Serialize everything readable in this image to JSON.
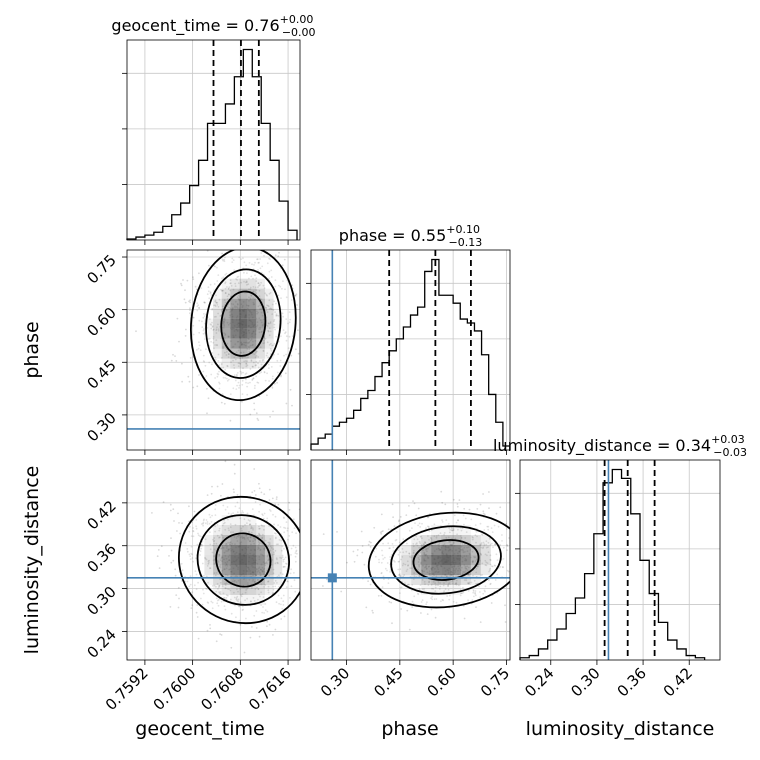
{
  "chart_data": {
    "type": "corner",
    "parameters": [
      "geocent_time",
      "phase",
      "luminosity_distance"
    ],
    "truths": {
      "geocent_time": null,
      "phase": 0.26,
      "luminosity_distance": 0.315
    },
    "grid": true,
    "marginals": [
      {
        "param": "geocent_time",
        "title": {
          "prefix": "geocent_time = ",
          "value": "0.76",
          "plus": "+0.00",
          "minus": "−0.00"
        },
        "xlim": [
          0.7589,
          0.7618
        ],
        "quantiles": [
          0.76035,
          0.76081,
          0.76111
        ],
        "bin_edges": [
          0.7589,
          0.75905,
          0.7592,
          0.75935,
          0.7595,
          0.75965,
          0.7598,
          0.75995,
          0.7601,
          0.76025,
          0.7604,
          0.76055,
          0.7607,
          0.76085,
          0.761,
          0.76115,
          0.7613,
          0.76145,
          0.7616,
          0.76175
        ],
        "counts": [
          0.5,
          1.5,
          2.5,
          4,
          7,
          13,
          19,
          28,
          41,
          60,
          60,
          70,
          84,
          98,
          84,
          60,
          41,
          20,
          5
        ]
      },
      {
        "param": "phase",
        "title": {
          "prefix": "phase = ",
          "value": "0.55",
          "plus": "+0.10",
          "minus": "−0.13"
        },
        "xlim": [
          0.2,
          0.76
        ],
        "quantiles": [
          0.42,
          0.55,
          0.65
        ],
        "bin_edges": [
          0.2,
          0.22,
          0.24,
          0.26,
          0.28,
          0.3,
          0.32,
          0.34,
          0.36,
          0.38,
          0.4,
          0.42,
          0.44,
          0.46,
          0.48,
          0.5,
          0.52,
          0.54,
          0.56,
          0.58,
          0.6,
          0.62,
          0.64,
          0.66,
          0.68,
          0.7,
          0.72,
          0.74,
          0.76
        ],
        "counts": [
          3,
          6,
          8,
          12,
          14,
          16,
          20,
          26,
          30,
          37,
          44,
          50,
          56,
          62,
          68,
          72,
          90,
          96,
          78,
          78,
          74,
          66,
          64,
          60,
          48,
          28,
          14,
          2
        ]
      },
      {
        "param": "luminosity_distance",
        "title": {
          "prefix": "luminosity_distance = ",
          "value": "0.34",
          "plus": "+0.03",
          "minus": "−0.03"
        },
        "xlim": [
          0.2,
          0.46
        ],
        "quantiles": [
          0.31,
          0.34,
          0.375
        ],
        "bin_edges": [
          0.2,
          0.212,
          0.224,
          0.236,
          0.248,
          0.26,
          0.272,
          0.284,
          0.296,
          0.308,
          0.32,
          0.332,
          0.344,
          0.356,
          0.368,
          0.38,
          0.392,
          0.404,
          0.416,
          0.428,
          0.44
        ],
        "counts": [
          1,
          2,
          5,
          9,
          14,
          21,
          28,
          39,
          57,
          80,
          86,
          82,
          66,
          45,
          30,
          17,
          9,
          5,
          2,
          1
        ]
      }
    ],
    "joints": [
      {
        "x": "geocent_time",
        "y": "phase",
        "xlim": [
          0.7589,
          0.7618
        ],
        "ylim": [
          0.2,
          0.77
        ],
        "center": [
          0.76085,
          0.56
        ],
        "spread": [
          0.0004,
          0.1
        ],
        "contour_levels": [
          "outer",
          "middle",
          "inner"
        ]
      },
      {
        "x": "geocent_time",
        "y": "luminosity_distance",
        "xlim": [
          0.7589,
          0.7618
        ],
        "ylim": [
          0.2,
          0.48
        ],
        "center": [
          0.76085,
          0.34
        ],
        "spread": [
          0.0005,
          0.04
        ]
      },
      {
        "x": "phase",
        "y": "luminosity_distance",
        "xlim": [
          0.2,
          0.76
        ],
        "ylim": [
          0.2,
          0.48
        ],
        "center": [
          0.58,
          0.34
        ],
        "spread": [
          0.1,
          0.03
        ]
      }
    ],
    "ticks": {
      "geocent_time": {
        "values": [
          0.7592,
          0.76,
          0.7608,
          0.7616
        ],
        "labels": [
          "0.7592",
          "0.7600",
          "0.7608",
          "0.7616"
        ]
      },
      "phase": {
        "values": [
          0.3,
          0.45,
          0.6,
          0.75
        ],
        "labels": [
          "0.30",
          "0.45",
          "0.60",
          "0.75"
        ]
      },
      "luminosity_distance": {
        "values": [
          0.24,
          0.3,
          0.36,
          0.42
        ],
        "labels": [
          "0.24",
          "0.30",
          "0.36",
          "0.42"
        ]
      }
    },
    "axis_labels": {
      "geocent_time": "geocent_time",
      "phase": "phase",
      "luminosity_distance": "luminosity_distance"
    },
    "colors": {
      "truth": "#4682b4",
      "hist": "#000000",
      "grid": "#c8c8c8",
      "points": "#000000"
    }
  }
}
